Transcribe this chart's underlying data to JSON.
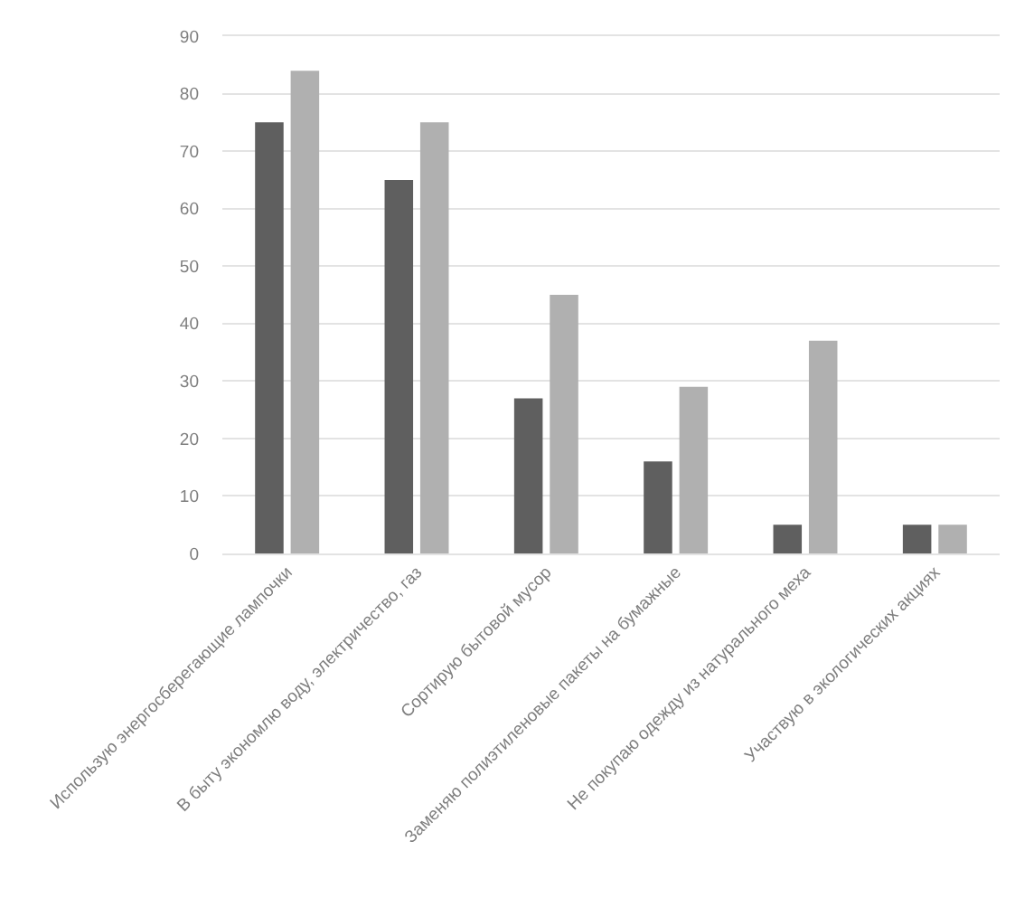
{
  "chart_data": {
    "type": "bar",
    "categories": [
      "Использую энергосберегающие лампочки",
      "В быту экономлю воду, электричество, газ",
      "Сортирую бытовой мусор",
      "Заменяю полиэтиленовые пакеты на бумажные",
      "Не покупаю одежду из натурального меха",
      "Участвую в экологических акциях"
    ],
    "series": [
      {
        "color": "#5f5f5f",
        "values": [
          75,
          65,
          27,
          16,
          5,
          5
        ]
      },
      {
        "color": "#b0b0b0",
        "values": [
          84,
          75,
          45,
          29,
          37,
          5
        ]
      }
    ],
    "ylim": [
      0,
      90
    ],
    "yticks": [
      0,
      10,
      20,
      30,
      40,
      50,
      60,
      70,
      80,
      90
    ],
    "grid": "y"
  }
}
